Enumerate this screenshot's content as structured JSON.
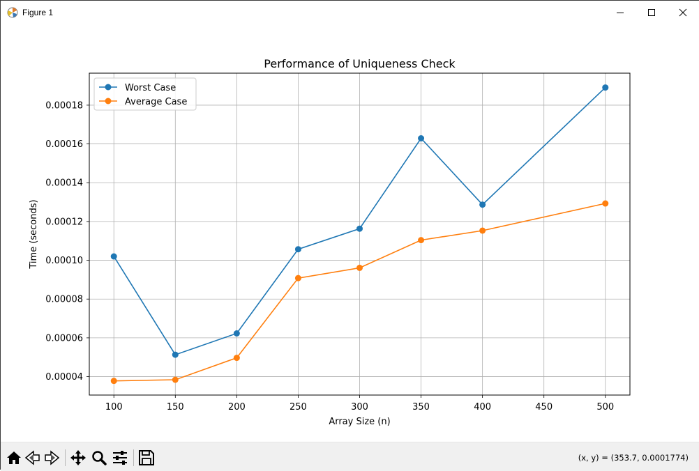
{
  "window": {
    "title": "Figure 1"
  },
  "toolbar": {
    "tools": [
      "home-icon",
      "back-icon",
      "forward-icon",
      "pan-icon",
      "zoom-icon",
      "configure-subplots-icon",
      "save-icon"
    ],
    "coords": "(x, y) = (353.7, 0.0001774)"
  },
  "colors": {
    "worst": "#1f77b4",
    "average": "#ff7f0e",
    "grid": "#b0b0b0"
  },
  "chart_data": {
    "type": "line",
    "title": "Performance of Uniqueness Check",
    "xlabel": "Array Size (n)",
    "ylabel": "Time (seconds)",
    "x": [
      100,
      150,
      200,
      250,
      300,
      350,
      400,
      500
    ],
    "xticks": [
      100,
      150,
      200,
      250,
      300,
      350,
      400,
      450,
      500
    ],
    "xtick_labels": [
      "100",
      "150",
      "200",
      "250",
      "300",
      "350",
      "400",
      "450",
      "500"
    ],
    "yticks": [
      4e-05,
      6e-05,
      8e-05,
      0.0001,
      0.00012,
      0.00014,
      0.00016,
      0.00018
    ],
    "ytick_labels": [
      "0.00004",
      "0.00006",
      "0.00008",
      "0.00010",
      "0.00012",
      "0.00014",
      "0.00016",
      "0.00018"
    ],
    "xlim": [
      80,
      520
    ],
    "ylim": [
      3.05e-05,
      0.0001965
    ],
    "grid": true,
    "legend_position": "upper-left",
    "series": [
      {
        "name": "Worst Case",
        "color": "#1f77b4",
        "values": [
          0.000102,
          5.13e-05,
          6.23e-05,
          0.0001057,
          0.0001163,
          0.0001629,
          0.0001287,
          0.0001891
        ]
      },
      {
        "name": "Average Case",
        "color": "#ff7f0e",
        "values": [
          3.78e-05,
          3.84e-05,
          4.97e-05,
          9.08e-05,
          9.61e-05,
          0.0001104,
          0.0001153,
          0.0001293
        ]
      }
    ]
  }
}
